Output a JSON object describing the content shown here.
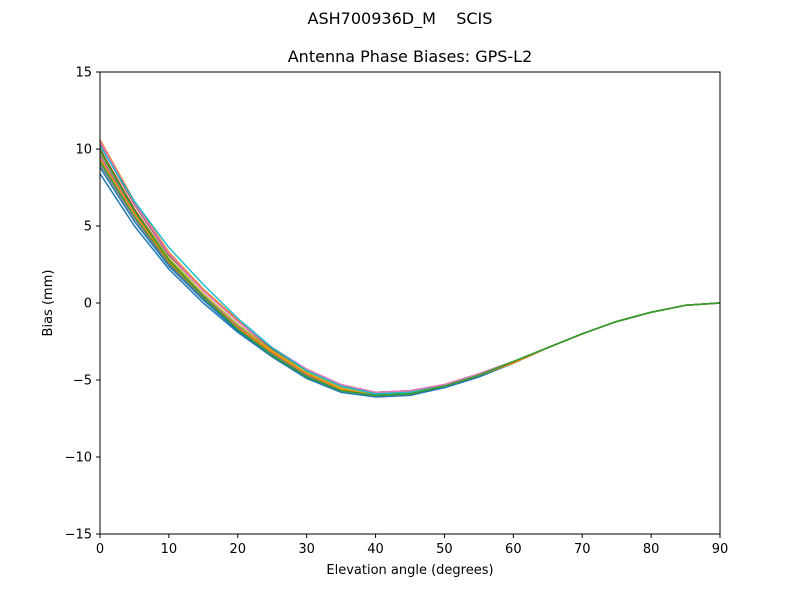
{
  "figure": {
    "suptitle": "ASH700936D_M    SCIS"
  },
  "chart_data": {
    "type": "line",
    "title": "Antenna Phase Biases: GPS-L2",
    "xlabel": "Elevation angle (degrees)",
    "ylabel": "Bias (mm)",
    "xlim": [
      0,
      90
    ],
    "ylim": [
      -15,
      15
    ],
    "xticks": [
      0,
      10,
      20,
      30,
      40,
      50,
      60,
      70,
      80,
      90
    ],
    "yticks": [
      -15,
      -10,
      -5,
      0,
      5,
      10,
      15
    ],
    "xtick_labels": [
      "0",
      "10",
      "20",
      "30",
      "40",
      "50",
      "60",
      "70",
      "80",
      "90"
    ],
    "ytick_labels": [
      "−15",
      "−10",
      "−5",
      "0",
      "5",
      "10",
      "15"
    ],
    "grid": false,
    "x": [
      0,
      5,
      10,
      15,
      20,
      25,
      30,
      35,
      40,
      45,
      50,
      55,
      60,
      65,
      70,
      75,
      80,
      85,
      90
    ],
    "series": [
      {
        "color": "#1f77b4",
        "values": [
          8.4,
          5.0,
          2.2,
          0.0,
          -1.9,
          -3.5,
          -4.9,
          -5.8,
          -6.1,
          -6.0,
          -5.5,
          -4.8,
          -3.9,
          -2.9,
          -2.0,
          -1.2,
          -0.6,
          -0.15,
          0.0
        ]
      },
      {
        "color": "#ff7f0e",
        "values": [
          10.6,
          6.6,
          3.3,
          0.9,
          -1.1,
          -2.9,
          -4.3,
          -5.3,
          -5.8,
          -5.7,
          -5.3,
          -4.6,
          -3.8,
          -2.9,
          -2.0,
          -1.2,
          -0.6,
          -0.15,
          0.0
        ]
      },
      {
        "color": "#2ca02c",
        "values": [
          9.2,
          5.6,
          2.6,
          0.3,
          -1.6,
          -3.3,
          -4.7,
          -5.6,
          -6.0,
          -5.9,
          -5.4,
          -4.7,
          -3.9,
          -2.9,
          -2.0,
          -1.2,
          -0.6,
          -0.15,
          0.0
        ]
      },
      {
        "color": "#d62728",
        "values": [
          10.0,
          6.1,
          2.9,
          0.6,
          -1.4,
          -3.1,
          -4.5,
          -5.5,
          -5.9,
          -5.8,
          -5.4,
          -4.7,
          -3.8,
          -2.9,
          -2.0,
          -1.2,
          -0.6,
          -0.15,
          0.0
        ]
      },
      {
        "color": "#9467bd",
        "values": [
          9.6,
          5.9,
          2.8,
          0.5,
          -1.5,
          -3.2,
          -4.6,
          -5.5,
          -5.9,
          -5.8,
          -5.4,
          -4.7,
          -3.8,
          -2.9,
          -2.0,
          -1.2,
          -0.6,
          -0.15,
          0.0
        ]
      },
      {
        "color": "#8c564b",
        "values": [
          10.3,
          6.4,
          3.1,
          0.8,
          -1.2,
          -3.0,
          -4.4,
          -5.4,
          -5.8,
          -5.7,
          -5.3,
          -4.6,
          -3.8,
          -2.9,
          -2.0,
          -1.2,
          -0.6,
          -0.15,
          0.0
        ]
      },
      {
        "color": "#e377c2",
        "values": [
          10.5,
          6.5,
          3.2,
          0.8,
          -1.2,
          -2.9,
          -4.3,
          -5.3,
          -5.8,
          -5.7,
          -5.3,
          -4.6,
          -3.8,
          -2.9,
          -2.0,
          -1.2,
          -0.6,
          -0.15,
          0.0
        ]
      },
      {
        "color": "#7f7f7f",
        "values": [
          9.0,
          5.5,
          2.5,
          0.3,
          -1.7,
          -3.3,
          -4.7,
          -5.6,
          -6.0,
          -5.9,
          -5.4,
          -4.7,
          -3.9,
          -2.9,
          -2.0,
          -1.2,
          -0.6,
          -0.15,
          0.0
        ]
      },
      {
        "color": "#bcbd22",
        "values": [
          9.8,
          6.0,
          2.9,
          0.6,
          -1.4,
          -3.1,
          -4.5,
          -5.5,
          -5.9,
          -5.8,
          -5.4,
          -4.7,
          -3.8,
          -2.9,
          -2.0,
          -1.2,
          -0.6,
          -0.15,
          0.0
        ]
      },
      {
        "color": "#17becf",
        "values": [
          10.2,
          6.6,
          3.6,
          1.2,
          -1.0,
          -2.9,
          -4.4,
          -5.4,
          -5.9,
          -5.8,
          -5.4,
          -4.7,
          -3.8,
          -2.9,
          -2.0,
          -1.2,
          -0.6,
          -0.15,
          0.0
        ]
      },
      {
        "color": "#1f77b4",
        "values": [
          8.8,
          5.3,
          2.4,
          0.2,
          -1.8,
          -3.4,
          -4.8,
          -5.7,
          -6.0,
          -5.9,
          -5.5,
          -4.8,
          -3.9,
          -2.9,
          -2.0,
          -1.2,
          -0.6,
          -0.15,
          0.0
        ]
      },
      {
        "color": "#ff7f0e",
        "values": [
          9.4,
          5.8,
          2.7,
          0.4,
          -1.6,
          -3.2,
          -4.6,
          -5.6,
          -6.0,
          -5.9,
          -5.4,
          -4.7,
          -3.9,
          -2.9,
          -2.0,
          -1.2,
          -0.6,
          -0.15,
          0.0
        ]
      },
      {
        "color": "#2ca02c",
        "values": [
          9.9,
          6.0,
          2.8,
          0.4,
          -1.7,
          -3.4,
          -4.8,
          -5.7,
          -6.0,
          -5.9,
          -5.4,
          -4.7,
          -3.8,
          -2.9,
          -2.0,
          -1.2,
          -0.6,
          -0.15,
          0.0
        ]
      }
    ]
  }
}
